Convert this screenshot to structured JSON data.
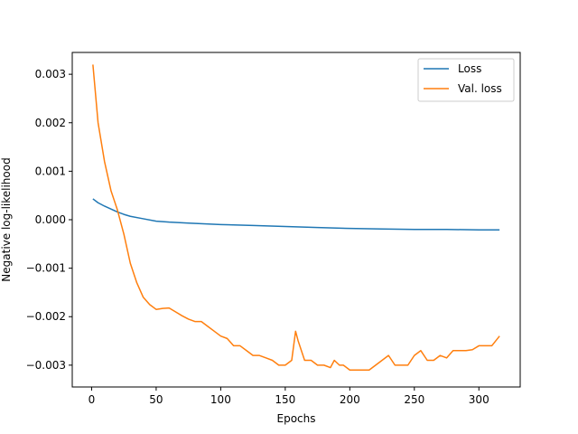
{
  "chart_data": {
    "type": "line",
    "title": "",
    "xlabel": "Epochs",
    "ylabel": "Negative log-likelihood",
    "xlim": [
      -15,
      332
    ],
    "ylim": [
      -0.00345,
      0.00345
    ],
    "xticks": [
      0,
      50,
      100,
      150,
      200,
      250,
      300
    ],
    "xtick_labels": [
      "0",
      "50",
      "100",
      "150",
      "200",
      "250",
      "300"
    ],
    "yticks": [
      -0.003,
      -0.002,
      -0.001,
      0.0,
      0.001,
      0.002,
      0.003
    ],
    "ytick_labels": [
      "−0.003",
      "−0.002",
      "−0.001",
      "0.000",
      "0.001",
      "0.002",
      "0.003"
    ],
    "grid": false,
    "legend_position": "top-right",
    "series": [
      {
        "name": "Loss",
        "color": "#1f77b4",
        "x": [
          1,
          5,
          10,
          15,
          20,
          25,
          30,
          40,
          50,
          60,
          75,
          100,
          125,
          150,
          175,
          200,
          225,
          250,
          275,
          300,
          316
        ],
        "y": [
          0.00043,
          0.00035,
          0.00028,
          0.00022,
          0.00016,
          0.00011,
          7e-05,
          2e-05,
          -3e-05,
          -5e-05,
          -7e-05,
          -0.0001,
          -0.00012,
          -0.00014,
          -0.00016,
          -0.00018,
          -0.00019,
          -0.0002,
          -0.0002,
          -0.00021,
          -0.00021
        ]
      },
      {
        "name": "Val. loss",
        "color": "#ff7f0e",
        "x": [
          1,
          5,
          10,
          15,
          20,
          25,
          30,
          35,
          40,
          45,
          50,
          55,
          60,
          65,
          70,
          75,
          80,
          85,
          90,
          95,
          100,
          105,
          110,
          115,
          120,
          125,
          130,
          135,
          140,
          145,
          150,
          155,
          158,
          160,
          165,
          170,
          175,
          180,
          185,
          188,
          192,
          195,
          200,
          205,
          210,
          215,
          220,
          225,
          230,
          235,
          240,
          245,
          250,
          255,
          260,
          265,
          270,
          275,
          280,
          285,
          290,
          295,
          300,
          305,
          310,
          316
        ],
        "y": [
          0.0032,
          0.002,
          0.0012,
          0.0006,
          0.0002,
          -0.0003,
          -0.0009,
          -0.0013,
          -0.0016,
          -0.00175,
          -0.00185,
          -0.00183,
          -0.00182,
          -0.0019,
          -0.00198,
          -0.00205,
          -0.0021,
          -0.0021,
          -0.0022,
          -0.0023,
          -0.0024,
          -0.00245,
          -0.0026,
          -0.0026,
          -0.0027,
          -0.0028,
          -0.0028,
          -0.00285,
          -0.0029,
          -0.003,
          -0.003,
          -0.0029,
          -0.0023,
          -0.0025,
          -0.0029,
          -0.0029,
          -0.003,
          -0.003,
          -0.00305,
          -0.0029,
          -0.003,
          -0.003,
          -0.0031,
          -0.0031,
          -0.0031,
          -0.0031,
          -0.003,
          -0.0029,
          -0.0028,
          -0.003,
          -0.003,
          -0.003,
          -0.0028,
          -0.0027,
          -0.0029,
          -0.0029,
          -0.0028,
          -0.00285,
          -0.0027,
          -0.0027,
          -0.0027,
          -0.00268,
          -0.0026,
          -0.0026,
          -0.0026,
          -0.0024
        ]
      }
    ]
  }
}
